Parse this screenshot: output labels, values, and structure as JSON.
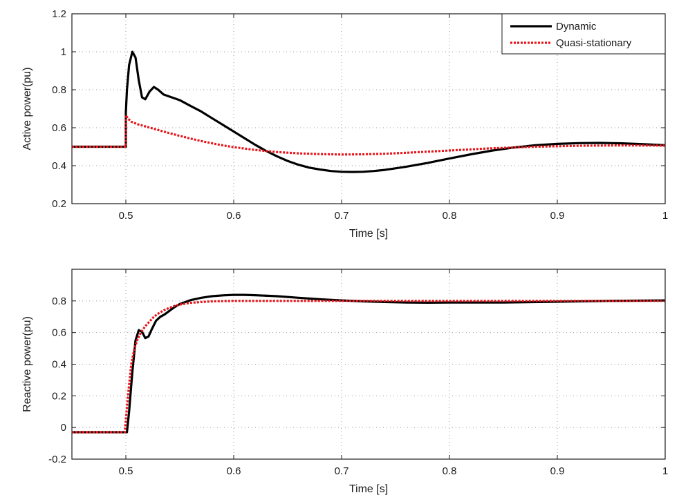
{
  "colors": {
    "dynamic": "#000000",
    "quasi_stationary": "#e8141a",
    "axes": "#1a1a1a",
    "grid": "#9a9a9a",
    "background": "#ffffff"
  },
  "chart_data": [
    {
      "type": "line",
      "xlabel": "Time [s]",
      "ylabel": "Active power(pu)",
      "xlim": [
        0.45,
        1.0
      ],
      "ylim": [
        0.2,
        1.2
      ],
      "xticks": [
        0.5,
        0.6,
        0.7,
        0.8,
        0.9,
        1.0
      ],
      "xtick_labels": [
        "0.5",
        "0.6",
        "0.7",
        "0.8",
        "0.9",
        "1"
      ],
      "yticks": [
        0.2,
        0.4,
        0.6,
        0.8,
        1.0,
        1.2
      ],
      "ytick_labels": [
        "0.2",
        "0.4",
        "0.6",
        "0.8",
        "1",
        "1.2"
      ],
      "grid": "dotted",
      "legend": {
        "placement": "top-right",
        "entries": [
          "Dynamic",
          "Quasi-stationary"
        ]
      },
      "series": [
        {
          "name": "Dynamic",
          "style": "solid",
          "x": [
            0.45,
            0.5,
            0.5,
            0.501,
            0.503,
            0.506,
            0.509,
            0.512,
            0.515,
            0.518,
            0.522,
            0.526,
            0.53,
            0.535,
            0.54,
            0.55,
            0.56,
            0.57,
            0.58,
            0.59,
            0.6,
            0.61,
            0.62,
            0.63,
            0.64,
            0.65,
            0.66,
            0.67,
            0.68,
            0.69,
            0.7,
            0.71,
            0.72,
            0.73,
            0.74,
            0.75,
            0.76,
            0.78,
            0.8,
            0.82,
            0.84,
            0.86,
            0.88,
            0.9,
            0.92,
            0.94,
            0.96,
            0.98,
            1.0
          ],
          "y": [
            0.5,
            0.5,
            0.68,
            0.8,
            0.93,
            1.0,
            0.97,
            0.85,
            0.76,
            0.75,
            0.79,
            0.815,
            0.8,
            0.775,
            0.765,
            0.745,
            0.715,
            0.685,
            0.65,
            0.615,
            0.58,
            0.545,
            0.51,
            0.478,
            0.45,
            0.425,
            0.405,
            0.39,
            0.38,
            0.372,
            0.368,
            0.367,
            0.368,
            0.372,
            0.378,
            0.386,
            0.395,
            0.415,
            0.438,
            0.46,
            0.48,
            0.496,
            0.508,
            0.515,
            0.519,
            0.52,
            0.518,
            0.513,
            0.508
          ]
        },
        {
          "name": "Quasi-stationary",
          "style": "dotted",
          "x": [
            0.45,
            0.5,
            0.5,
            0.502,
            0.505,
            0.51,
            0.52,
            0.53,
            0.54,
            0.55,
            0.56,
            0.57,
            0.58,
            0.59,
            0.6,
            0.62,
            0.64,
            0.66,
            0.68,
            0.7,
            0.72,
            0.74,
            0.76,
            0.8,
            0.84,
            0.88,
            0.92,
            0.96,
            1.0
          ],
          "y": [
            0.5,
            0.5,
            0.665,
            0.648,
            0.632,
            0.62,
            0.604,
            0.588,
            0.572,
            0.557,
            0.543,
            0.53,
            0.518,
            0.507,
            0.498,
            0.483,
            0.472,
            0.465,
            0.461,
            0.459,
            0.46,
            0.463,
            0.468,
            0.48,
            0.492,
            0.5,
            0.505,
            0.507,
            0.506
          ]
        }
      ]
    },
    {
      "type": "line",
      "xlabel": "Time [s]",
      "ylabel": "Reactive power(pu)",
      "xlim": [
        0.45,
        1.0
      ],
      "ylim": [
        -0.2,
        1.0
      ],
      "xticks": [
        0.5,
        0.6,
        0.7,
        0.8,
        0.9,
        1.0
      ],
      "xtick_labels": [
        "0.5",
        "0.6",
        "0.7",
        "0.8",
        "0.9",
        "1"
      ],
      "yticks": [
        -0.2,
        0.0,
        0.2,
        0.4,
        0.6,
        0.8
      ],
      "ytick_labels": [
        "-0.2",
        "0",
        "0.2",
        "0.4",
        "0.6",
        "0.8"
      ],
      "grid": "dotted",
      "series": [
        {
          "name": "Dynamic",
          "style": "solid",
          "x": [
            0.45,
            0.501,
            0.503,
            0.506,
            0.509,
            0.512,
            0.515,
            0.518,
            0.521,
            0.524,
            0.528,
            0.532,
            0.536,
            0.54,
            0.545,
            0.55,
            0.56,
            0.57,
            0.58,
            0.59,
            0.6,
            0.61,
            0.62,
            0.64,
            0.66,
            0.68,
            0.7,
            0.72,
            0.74,
            0.76,
            0.78,
            0.8,
            0.85,
            0.9,
            0.95,
            1.0
          ],
          "y": [
            -0.03,
            -0.03,
            0.1,
            0.35,
            0.55,
            0.615,
            0.605,
            0.565,
            0.575,
            0.62,
            0.675,
            0.7,
            0.715,
            0.735,
            0.76,
            0.78,
            0.805,
            0.82,
            0.83,
            0.835,
            0.838,
            0.838,
            0.836,
            0.83,
            0.82,
            0.81,
            0.803,
            0.797,
            0.793,
            0.79,
            0.789,
            0.79,
            0.79,
            0.795,
            0.8,
            0.803
          ]
        },
        {
          "name": "Quasi-stationary",
          "style": "dotted",
          "x": [
            0.45,
            0.499,
            0.502,
            0.505,
            0.508,
            0.511,
            0.514,
            0.518,
            0.522,
            0.526,
            0.53,
            0.535,
            0.54,
            0.545,
            0.55,
            0.56,
            0.57,
            0.58,
            0.6,
            0.65,
            0.7,
            0.8,
            0.9,
            1.0
          ],
          "y": [
            -0.03,
            -0.03,
            0.2,
            0.4,
            0.5,
            0.56,
            0.6,
            0.64,
            0.67,
            0.7,
            0.72,
            0.74,
            0.755,
            0.768,
            0.777,
            0.788,
            0.793,
            0.797,
            0.8,
            0.8,
            0.8,
            0.8,
            0.8,
            0.8
          ]
        }
      ]
    }
  ]
}
